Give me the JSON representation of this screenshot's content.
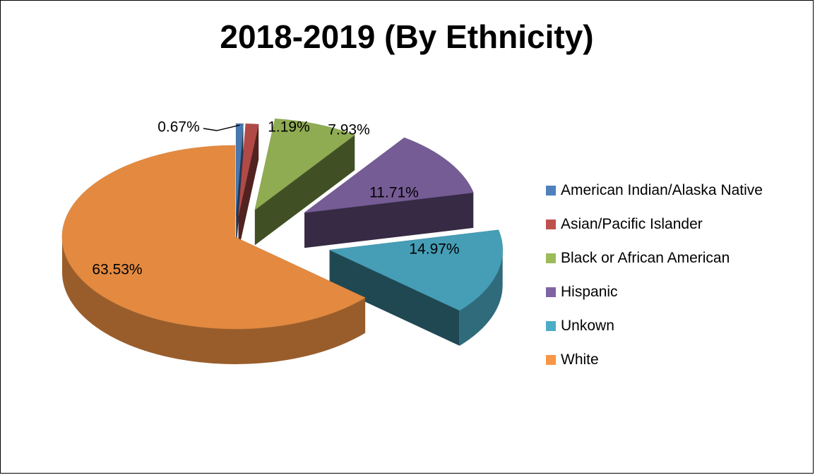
{
  "chart_data": {
    "type": "pie",
    "title": "2018-2019 (By Ethnicity)",
    "categories": [
      "American Indian/Alaska Native",
      "Asian/Pacific Islander",
      "Black or African American",
      "Hispanic",
      "Unkown",
      "White"
    ],
    "values": [
      0.67,
      1.19,
      7.93,
      11.71,
      14.97,
      63.53
    ],
    "labels": [
      "0.67%",
      "1.19%",
      "7.93%",
      "11.71%",
      "14.97%",
      "63.53%"
    ],
    "unit": "%",
    "colors": [
      "#4f81bd",
      "#c0504d",
      "#9bbb59",
      "#8064a2",
      "#4bacc6",
      "#f79646"
    ],
    "exploded": true,
    "three_d": true,
    "legend_position": "right"
  }
}
